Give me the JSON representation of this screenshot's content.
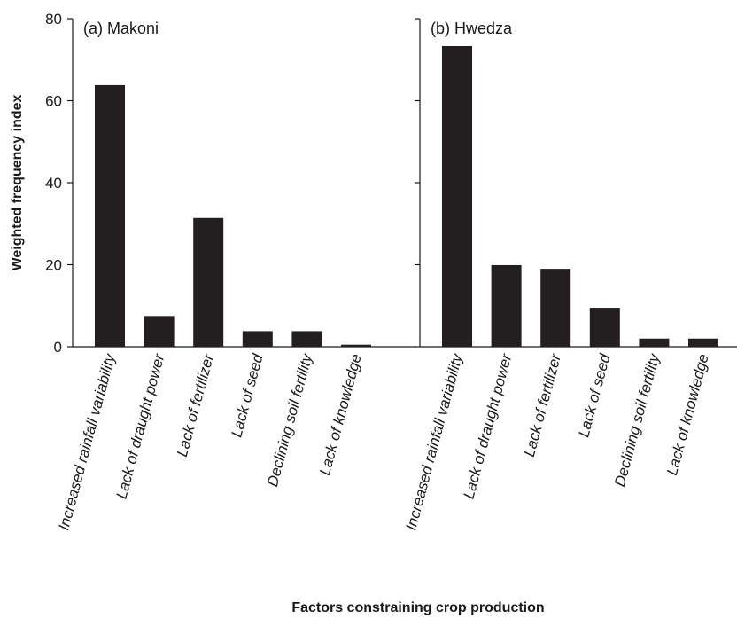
{
  "chart_data": {
    "type": "bar",
    "ylabel": "Weighted frequency index",
    "xlabel": "Factors constraining crop production",
    "ylim": [
      0,
      80
    ],
    "yticks": [
      0,
      20,
      40,
      60,
      80
    ],
    "categories": [
      "Increased rainfall variability",
      "Lack of draught power",
      "Lack of fertilizer",
      "Lack of seed",
      "Declining soil fertility",
      "Lack of knowledge"
    ],
    "panels": [
      {
        "label": "(a) Makoni",
        "values": [
          63.8,
          7.5,
          31.4,
          3.8,
          3.8,
          0.5
        ]
      },
      {
        "label": "(b) Hwedza",
        "values": [
          73.3,
          19.9,
          19.0,
          9.5,
          2.0,
          2.0
        ]
      }
    ],
    "bar_color": "#231f20"
  }
}
